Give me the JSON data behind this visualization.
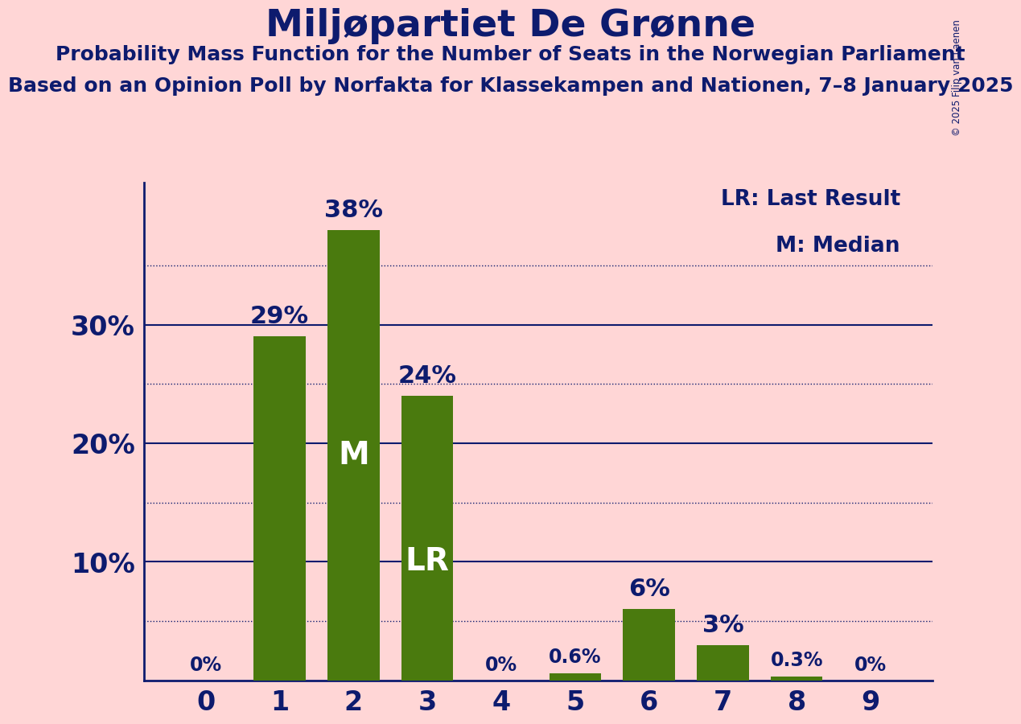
{
  "title": "Miljøpartiet De Grønne",
  "subtitle1": "Probability Mass Function for the Number of Seats in the Norwegian Parliament",
  "subtitle2": "Based on an Opinion Poll by Norfakta for Klassekampen and Nationen, 7–8 January 2025",
  "copyright": "© 2025 Filip van Laenen",
  "categories": [
    0,
    1,
    2,
    3,
    4,
    5,
    6,
    7,
    8,
    9
  ],
  "values": [
    0.0,
    29.0,
    38.0,
    24.0,
    0.0,
    0.6,
    6.0,
    3.0,
    0.3,
    0.0
  ],
  "bar_color": "#4a7a0e",
  "background_color": "#ffd6d6",
  "title_color": "#0d1b6e",
  "median_bar": 2,
  "lr_bar": 3,
  "ylim": [
    0,
    42
  ],
  "yticks": [
    10,
    20,
    30
  ],
  "dotted_lines": [
    5,
    15,
    25,
    35
  ],
  "legend_text": [
    "LR: Last Result",
    "M: Median"
  ]
}
